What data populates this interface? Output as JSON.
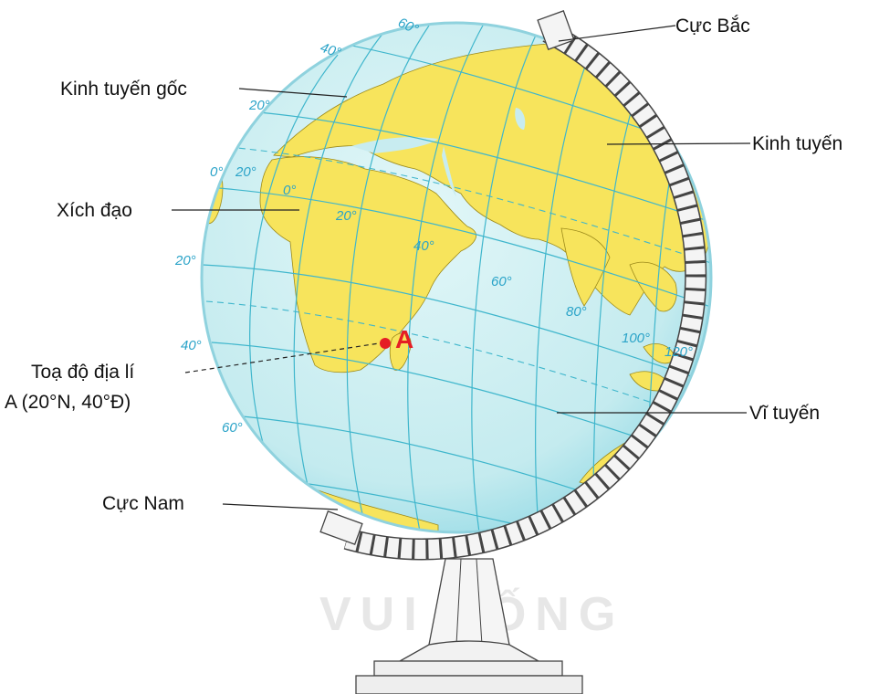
{
  "labels": {
    "north_pole": "Cực Bắc",
    "prime_meridian": "Kinh tuyến gốc",
    "meridian": "Kinh tuyến",
    "equator": "Xích đạo",
    "coord_line1": "Toạ độ địa lí",
    "coord_line2": "A (20°N, 40°Đ)",
    "parallel": "Vĩ tuyến",
    "south_pole": "Cực Nam"
  },
  "point_label": "A",
  "watermark": "VUI SỐNG",
  "degree_labels": {
    "lat_60n": "60°",
    "lat_40n": "40°",
    "lat_20n": "20°",
    "lat_0_left": "0°",
    "lat_20s": "20°",
    "lat_40s": "40°",
    "lat_60s": "60°",
    "lon_20w": "20°",
    "lon_0": "0°",
    "lon_20e": "20°",
    "lon_40e": "40°",
    "lon_60e": "60°",
    "lon_80e": "80°",
    "lon_100e": "100°",
    "lon_120e": "120°"
  },
  "colors": {
    "ocean": "#c8ecf0",
    "land": "#f7e45c",
    "grid": "#3fb6cc",
    "point": "#e51e25",
    "stand": "#f2f2f2"
  }
}
